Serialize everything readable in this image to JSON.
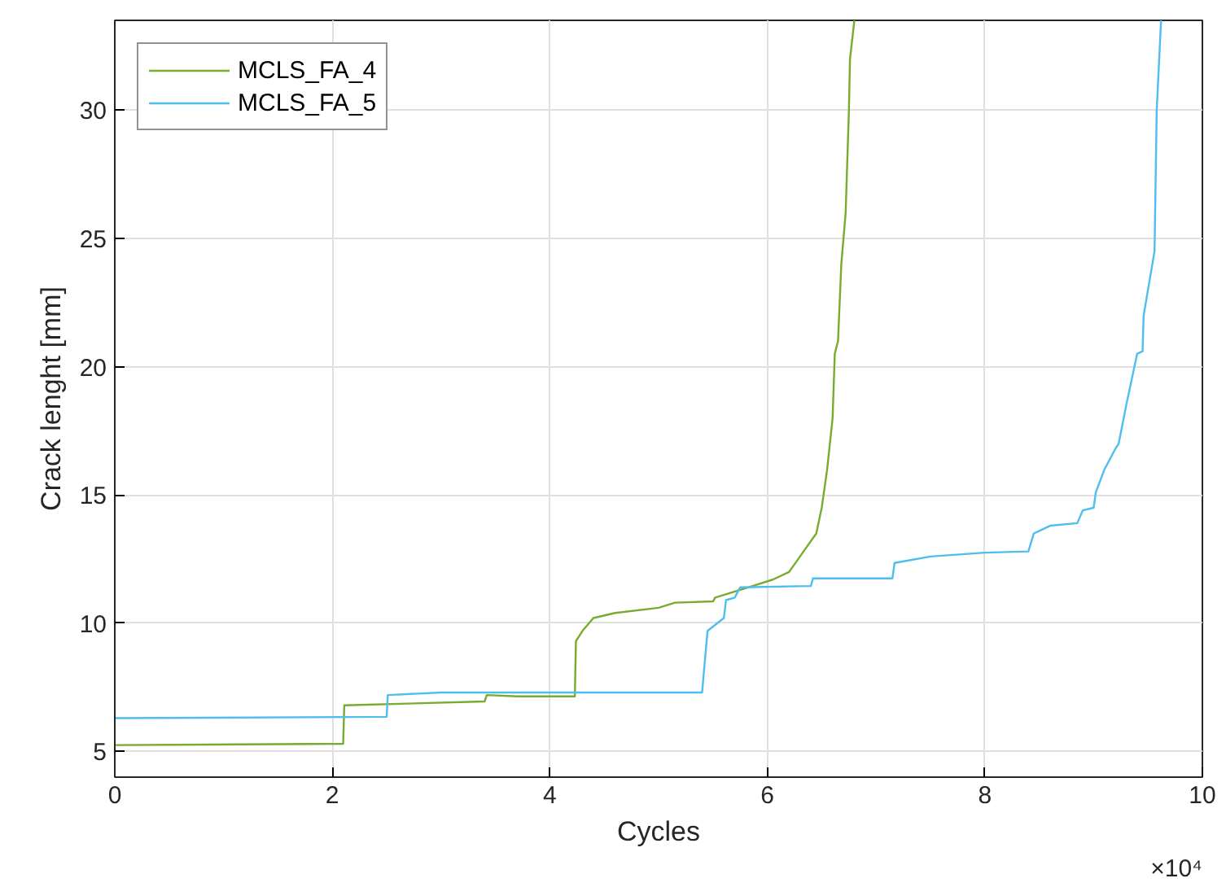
{
  "chart_data": {
    "type": "line",
    "xlabel": "Cycles",
    "ylabel": "Crack lenght [mm]",
    "annotations": [
      "×10⁴"
    ],
    "xlim": [
      0,
      10
    ],
    "ylim": [
      4,
      33.5
    ],
    "xticks": [
      0,
      2,
      4,
      6,
      8,
      10
    ],
    "yticks": [
      5,
      10,
      15,
      20,
      25,
      30
    ],
    "grid": true,
    "legend": "top left",
    "line_style": "solid",
    "marker": "none",
    "series": [
      {
        "name": "MCLS_FA_4",
        "color": "#77ac30",
        "x": [
          0,
          2.1,
          2.11,
          3.4,
          3.42,
          3.7,
          4.23,
          4.24,
          4.3,
          4.4,
          4.6,
          5.0,
          5.15,
          5.5,
          5.52,
          5.75,
          5.9,
          6.05,
          6.2,
          6.25,
          6.35,
          6.45,
          6.5,
          6.55,
          6.6,
          6.62,
          6.65,
          6.68,
          6.72,
          6.75,
          6.76,
          6.8
        ],
        "values": [
          5.25,
          5.3,
          6.8,
          6.95,
          7.2,
          7.15,
          7.15,
          9.3,
          9.7,
          10.2,
          10.4,
          10.6,
          10.8,
          10.85,
          11.0,
          11.3,
          11.5,
          11.7,
          12.0,
          12.3,
          12.9,
          13.5,
          14.5,
          16,
          18,
          20.5,
          21,
          24,
          26,
          30,
          32,
          33.5
        ]
      },
      {
        "name": "MCLS_FA_5",
        "color": "#4dbeee",
        "x": [
          0,
          2.5,
          2.51,
          3.0,
          5.4,
          5.45,
          5.6,
          5.62,
          5.7,
          5.75,
          6.4,
          6.42,
          7.15,
          7.17,
          7.5,
          8.0,
          8.4,
          8.45,
          8.5,
          8.6,
          8.85,
          8.9,
          9.0,
          9.02,
          9.1,
          9.2,
          9.23,
          9.3,
          9.4,
          9.45,
          9.46,
          9.52,
          9.56,
          9.58,
          9.62
        ],
        "values": [
          6.3,
          6.35,
          7.2,
          7.3,
          7.3,
          9.7,
          10.2,
          10.9,
          11.0,
          11.4,
          11.45,
          11.75,
          11.75,
          12.35,
          12.6,
          12.75,
          12.8,
          13.5,
          13.6,
          13.8,
          13.9,
          14.4,
          14.5,
          15.1,
          16,
          16.8,
          17,
          18.5,
          20.5,
          20.6,
          22,
          23.5,
          24.5,
          30,
          33.5
        ]
      }
    ]
  }
}
